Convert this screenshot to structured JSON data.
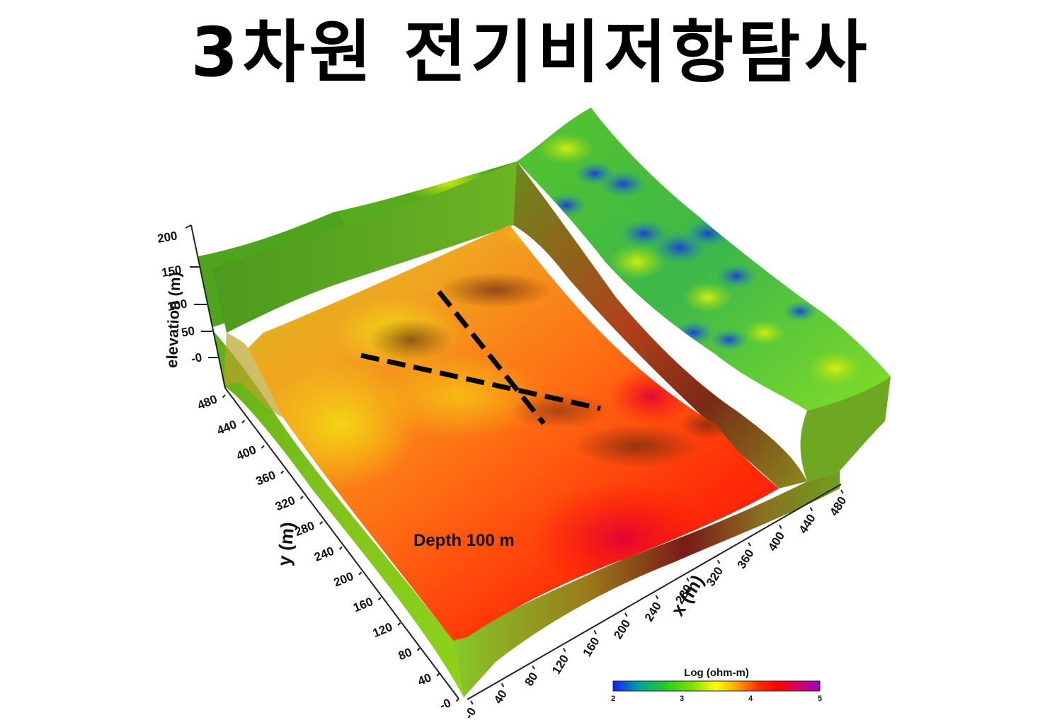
{
  "title": "3차원 전기비저항탐사",
  "annotation": "Depth 100 m",
  "axes": {
    "elevation": {
      "label": "elevation (m)",
      "ticks": [
        "200",
        "150",
        "100",
        "50",
        "-0"
      ]
    },
    "y": {
      "label": "y (m)",
      "ticks": [
        "480",
        "440",
        "400",
        "360",
        "320",
        "280",
        "240",
        "200",
        "160",
        "120",
        "80",
        "40",
        "-0"
      ]
    },
    "x": {
      "label": "x (m)",
      "ticks": [
        "-0",
        "40",
        "80",
        "120",
        "160",
        "200",
        "240",
        "280",
        "320",
        "360",
        "400",
        "440",
        "480"
      ]
    }
  },
  "colorbar": {
    "title": "Log (ohm-m)",
    "ticks": [
      "2",
      "3",
      "4",
      "5"
    ],
    "colors": [
      "#1a1aff",
      "#00a0a0",
      "#22cc22",
      "#7fe000",
      "#ffff00",
      "#ffa000",
      "#ff3000",
      "#ff0000",
      "#d0006a",
      "#a000c0"
    ]
  },
  "surface_colors": {
    "green": "#4caf1a",
    "lime": "#8ce000",
    "yellow": "#f0d000",
    "orange": "#ff7a10",
    "red": "#ff1e00",
    "deep_red": "#b00018",
    "blue": "#2040d0"
  },
  "dashed_lines": 2
}
